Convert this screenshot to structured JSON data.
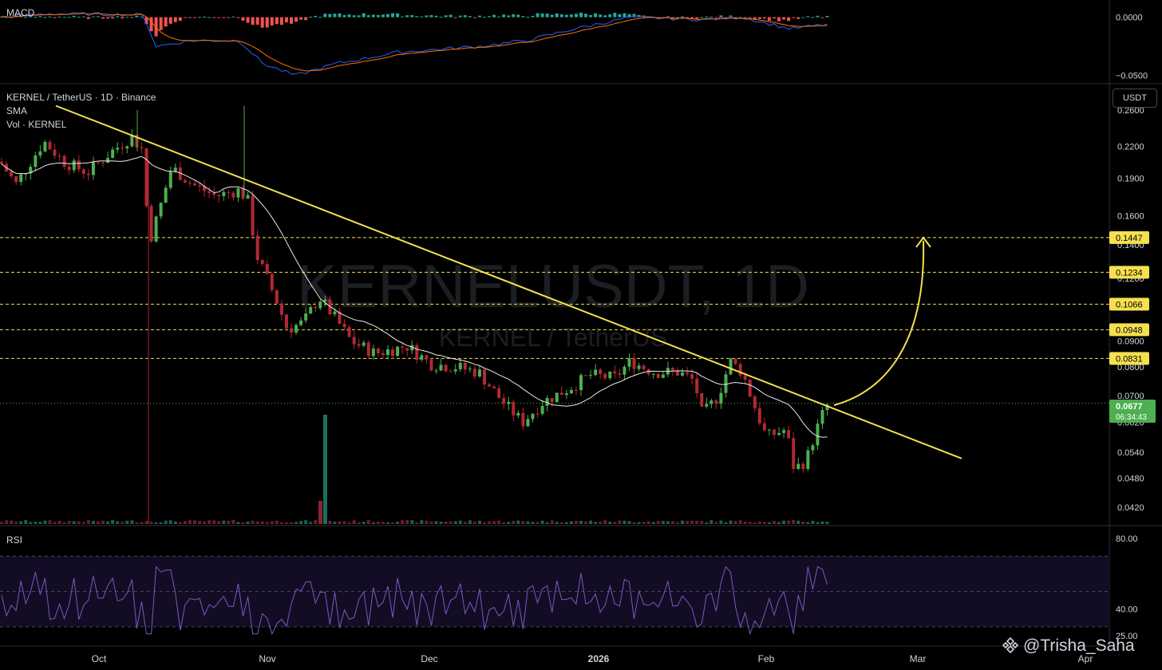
{
  "header": {
    "symbol_title": "KERNEL / TetherUS · 1D · Binance",
    "sma_label": "SMA",
    "volume_label": "Vol · KERNEL",
    "macd_label": "MACD",
    "rsi_label": "RSI",
    "currency_button": "USDT"
  },
  "watermark": {
    "big_text": "KERNELUSDT, 1D",
    "sub_text": "KERNEL / TetherUS",
    "author": "@Trisha_Saha"
  },
  "price_badge": {
    "price": "0.0677",
    "countdown": "06:34:43"
  },
  "chart_data": [
    {
      "type": "candlestick",
      "panel": "price",
      "x_ticks": [
        "Oct",
        "Nov",
        "Dec",
        "2026",
        "Feb",
        "Mar",
        "Apr"
      ],
      "y_ticks": [
        "0.2600",
        "0.2200",
        "0.1900",
        "0.1600",
        "0.1400",
        "0.1200",
        "0.1050",
        "0.0900",
        "0.0800",
        "0.0700",
        "0.0620",
        "0.0540",
        "0.0480",
        "0.0420"
      ],
      "scale": "log",
      "ylim": [
        0.039,
        0.29
      ],
      "level_lines": [
        "0.1447",
        "0.1234",
        "0.1066",
        "0.0948",
        "0.0831"
      ],
      "colors": {
        "up": "#26a69a",
        "up_candle": "#4caf50",
        "down": "#b22833",
        "trendline": "#f5e04f",
        "sma": "#e8e8e8",
        "level": "#f5e04f",
        "last_price": "#4caf50"
      },
      "last_price": 0.0677,
      "projection_target": 0.1447
    },
    {
      "type": "line",
      "panel": "macd",
      "y_ticks": [
        "0.0000",
        "−0.0500"
      ],
      "ylim": [
        -0.055,
        0.012
      ],
      "series_colors": {
        "macd": "#2962ff",
        "signal": "#ff6d00",
        "hist_up": "#26a69a",
        "hist_down": "#ef5350"
      }
    },
    {
      "type": "line",
      "panel": "rsi",
      "y_ticks": [
        "80.00",
        "40.00",
        "25.00"
      ],
      "ylim": [
        20,
        85
      ],
      "band": [
        30,
        70
      ],
      "series_colors": {
        "rsi": "#7e57c2",
        "band_fill": "#120d24"
      }
    }
  ]
}
